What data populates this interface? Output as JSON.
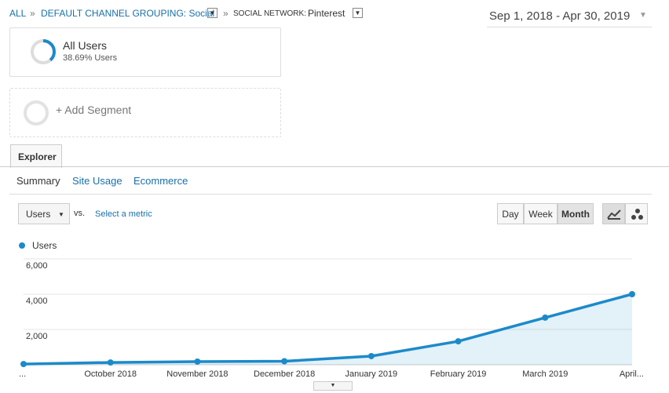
{
  "breadcrumb": {
    "items": [
      "ALL",
      "DEFAULT CHANNEL GROUPING: Social"
    ],
    "separator": "»",
    "last_label": "SOCIAL NETWORK:",
    "last_value": "Pinterest"
  },
  "date_range": "Sep 1, 2018 - Apr 30, 2019",
  "segment": {
    "name": "All Users",
    "percent": 38.69,
    "label": "38.69% Users"
  },
  "add_segment": "+ Add Segment",
  "tab": "Explorer",
  "subtabs": [
    "Summary",
    "Site Usage",
    "Ecommerce"
  ],
  "metric": {
    "selected": "Users",
    "vs": "vs.",
    "select": "Select a metric"
  },
  "periods": [
    "Day",
    "Week",
    "Month"
  ],
  "chart_data": {
    "type": "line",
    "categories": [
      "...",
      "October 2018",
      "November 2018",
      "December 2018",
      "January 2019",
      "February 2019",
      "March 2019",
      "April..."
    ],
    "series": [
      {
        "name": "Users",
        "color": "#1c8ac9",
        "values": [
          40,
          130,
          180,
          200,
          490,
          1330,
          2670,
          4000
        ]
      }
    ],
    "ylim": [
      0,
      6000
    ],
    "yticks": [
      {
        "value": 2000,
        "label": "2,000"
      },
      {
        "value": 4000,
        "label": "4,000"
      },
      {
        "value": 6000,
        "label": "6,000"
      }
    ],
    "grid": true,
    "area": true
  }
}
